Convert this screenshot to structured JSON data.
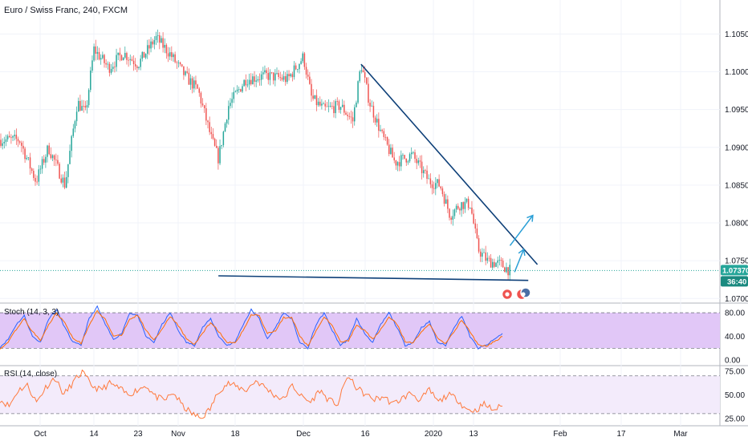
{
  "header": {
    "symbol_title": "Euro / Swiss Franc, 240, FXCM"
  },
  "indicators": {
    "stoch_label": "Stoch (14, 3, 3)",
    "rsi_label": "RSI (14, close)"
  },
  "price_badges": {
    "last_price": "1.07370",
    "countdown": "36:40"
  },
  "colors": {
    "up_candle": "#26a69a",
    "down_candle": "#ef5350",
    "trendline": "#0d3f78",
    "arrow": "#2a9fd6",
    "stoch_k": "#2962ff",
    "stoch_d": "#ff6d00",
    "stoch_fill": "#e1c7f7",
    "rsi_line": "#ff7a3d",
    "rsi_fill": "#f3ebfb",
    "last_price_bg": "#26a69a",
    "countdown_bg": "#1b8a80"
  },
  "chart_data": [
    {
      "type": "candlestick",
      "title": "Euro / Swiss Franc, 240, FXCM",
      "x_tick_labels": [
        "Oct",
        "14",
        "23",
        "Nov",
        "18",
        "Dec",
        "16",
        "2020",
        "13",
        "Feb",
        "17",
        "Mar"
      ],
      "y_tick_labels": [
        "1.10500",
        "1.10000",
        "1.09500",
        "1.09000",
        "1.08500",
        "1.08000",
        "1.07500",
        "1.07000"
      ],
      "ylim": [
        1.0695,
        1.1095
      ],
      "close_path": [
        {
          "x": "2019-09-26",
          "y": 1.091
        },
        {
          "x": "2019-09-30",
          "y": 1.0855
        },
        {
          "x": "2019-10-03",
          "y": 1.09
        },
        {
          "x": "2019-10-07",
          "y": 1.085
        },
        {
          "x": "2019-10-10",
          "y": 1.096
        },
        {
          "x": "2019-10-12",
          "y": 1.0945
        },
        {
          "x": "2019-10-14",
          "y": 1.103
        },
        {
          "x": "2019-10-17",
          "y": 1.1005
        },
        {
          "x": "2019-10-20",
          "y": 1.1025
        },
        {
          "x": "2019-10-23",
          "y": 1.101
        },
        {
          "x": "2019-10-27",
          "y": 1.1045
        },
        {
          "x": "2019-10-30",
          "y": 1.1025
        },
        {
          "x": "2019-11-03",
          "y": 1.0995
        },
        {
          "x": "2019-11-07",
          "y": 1.0975
        },
        {
          "x": "2019-11-11",
          "y": 1.091
        },
        {
          "x": "2019-11-13",
          "y": 1.0885
        },
        {
          "x": "2019-11-16",
          "y": 1.0955
        },
        {
          "x": "2019-11-20",
          "y": 1.099
        },
        {
          "x": "2019-11-24",
          "y": 1.0995
        },
        {
          "x": "2019-11-28",
          "y": 1.099
        },
        {
          "x": "2019-12-01",
          "y": 1.102
        },
        {
          "x": "2019-12-03",
          "y": 1.0965
        },
        {
          "x": "2019-12-06",
          "y": 1.095
        },
        {
          "x": "2019-12-10",
          "y": 1.0955
        },
        {
          "x": "2019-12-13",
          "y": 1.0935
        },
        {
          "x": "2019-12-15",
          "y": 1.101
        },
        {
          "x": "2019-12-17",
          "y": 1.096
        },
        {
          "x": "2019-12-20",
          "y": 1.0915
        },
        {
          "x": "2019-12-23",
          "y": 1.088
        },
        {
          "x": "2019-12-27",
          "y": 1.089
        },
        {
          "x": "2019-12-31",
          "y": 1.0855
        },
        {
          "x": "2020-01-03",
          "y": 1.085
        },
        {
          "x": "2020-01-06",
          "y": 1.081
        },
        {
          "x": "2020-01-09",
          "y": 1.0825
        },
        {
          "x": "2020-01-12",
          "y": 1.0825
        },
        {
          "x": "2020-01-14",
          "y": 1.0765
        },
        {
          "x": "2020-01-16",
          "y": 1.075
        },
        {
          "x": "2020-01-19",
          "y": 1.0745
        },
        {
          "x": "2020-01-21",
          "y": 1.0737
        }
      ],
      "annotations": {
        "resistance_trendline": [
          {
            "x": "2019-12-15",
            "y": 1.101
          },
          {
            "x": "2020-01-27",
            "y": 1.0745
          }
        ],
        "support_line": [
          {
            "x": "2019-11-13",
            "y": 1.073
          },
          {
            "x": "2020-01-25",
            "y": 1.0724
          }
        ],
        "arrows": [
          {
            "from": {
              "x": "2020-01-22",
              "y": 1.0735
            },
            "to": {
              "x": "2020-01-24",
              "y": 1.0765
            }
          },
          {
            "from": {
              "x": "2020-01-21",
              "y": 1.077
            },
            "to": {
              "x": "2020-01-26",
              "y": 1.081
            }
          }
        ]
      },
      "last_price": 1.0737
    },
    {
      "type": "line",
      "title": "Stoch (14, 3, 3)",
      "y_tick_labels": [
        "80.00",
        "40.00",
        "0.00"
      ],
      "ylim": [
        -8,
        95
      ],
      "band": [
        20,
        80
      ],
      "series": [
        {
          "values": [
            22,
            35,
            60,
            75,
            40,
            30,
            70,
            85,
            55,
            30,
            25,
            70,
            90,
            60,
            35,
            45,
            80,
            75,
            40,
            30,
            60,
            80,
            50,
            30,
            25,
            55,
            70,
            40,
            25,
            30,
            60,
            85,
            70,
            35,
            55,
            80,
            70,
            30,
            20,
            60,
            80,
            50,
            25,
            35,
            70,
            45,
            30,
            60,
            80,
            55,
            25,
            30,
            55,
            65,
            30,
            25,
            55,
            75,
            40,
            20,
            25,
            35,
            45
          ]
        },
        {
          "values": [
            20,
            30,
            52,
            70,
            48,
            33,
            60,
            80,
            62,
            38,
            28,
            58,
            84,
            68,
            42,
            42,
            70,
            76,
            50,
            34,
            52,
            74,
            58,
            36,
            27,
            46,
            64,
            48,
            30,
            29,
            50,
            78,
            74,
            45,
            50,
            72,
            72,
            40,
            24,
            50,
            74,
            58,
            32,
            32,
            60,
            50,
            35,
            52,
            74,
            60,
            32,
            29,
            48,
            62,
            38,
            28,
            48,
            68,
            48,
            26,
            24,
            31,
            40
          ]
        }
      ]
    },
    {
      "type": "line",
      "title": "RSI (14, close)",
      "y_tick_labels": [
        "75.00",
        "50.00",
        "25.00"
      ],
      "ylim": [
        18,
        80
      ],
      "band": [
        30,
        70
      ],
      "series": [
        {
          "values": [
            45,
            38,
            55,
            60,
            42,
            58,
            68,
            50,
            63,
            74,
            60,
            55,
            62,
            57,
            50,
            55,
            60,
            48,
            44,
            52,
            38,
            30,
            25,
            35,
            55,
            62,
            58,
            55,
            65,
            58,
            50,
            45,
            60,
            48,
            42,
            55,
            44,
            40,
            70,
            58,
            50,
            45,
            48,
            40,
            46,
            52,
            44,
            55,
            42,
            50,
            46,
            35,
            33,
            40,
            34,
            38
          ]
        }
      ]
    }
  ]
}
